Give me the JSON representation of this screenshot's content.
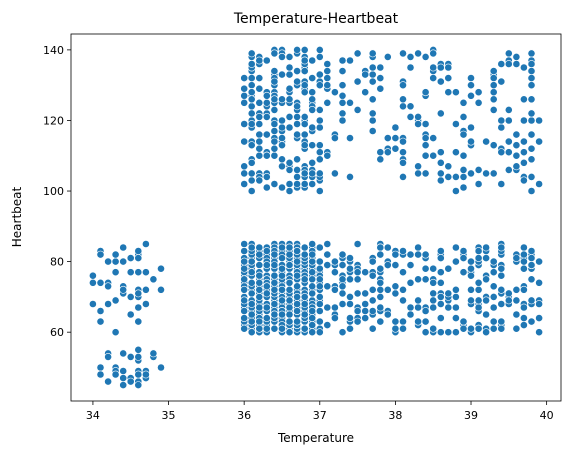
{
  "chart_data": {
    "type": "scatter",
    "title": "Temperature-Heartbeat",
    "xlabel": "Temperature",
    "ylabel": "Heartbeat",
    "xlim": [
      33.71,
      40.19
    ],
    "ylim": [
      40.5,
      144.5
    ],
    "x_ticks": [
      34,
      35,
      36,
      37,
      38,
      39,
      40
    ],
    "y_ticks": [
      60,
      80,
      100,
      120,
      140
    ],
    "grid": false,
    "legend": "none",
    "colors": {
      "marker": "#1f77b4",
      "marker_edge": "#ffffff",
      "axis": "#000000"
    },
    "clusters": [
      {
        "x_range": [
          34.0,
          34.9
        ],
        "y_range": [
          45,
          55
        ],
        "count": 34
      },
      {
        "x_range": [
          34.0,
          34.9
        ],
        "y_range": [
          60,
          85
        ],
        "count": 48
      },
      {
        "x_range": [
          36.0,
          37.0
        ],
        "y_range": [
          60,
          85
        ],
        "count": 560
      },
      {
        "x_range": [
          37.0,
          39.9
        ],
        "y_range": [
          60,
          85
        ],
        "count": 300
      },
      {
        "x_range": [
          36.0,
          37.0
        ],
        "y_range": [
          100,
          140
        ],
        "count": 230
      },
      {
        "x_range": [
          37.0,
          39.9
        ],
        "y_range": [
          100,
          140
        ],
        "count": 190
      }
    ]
  }
}
